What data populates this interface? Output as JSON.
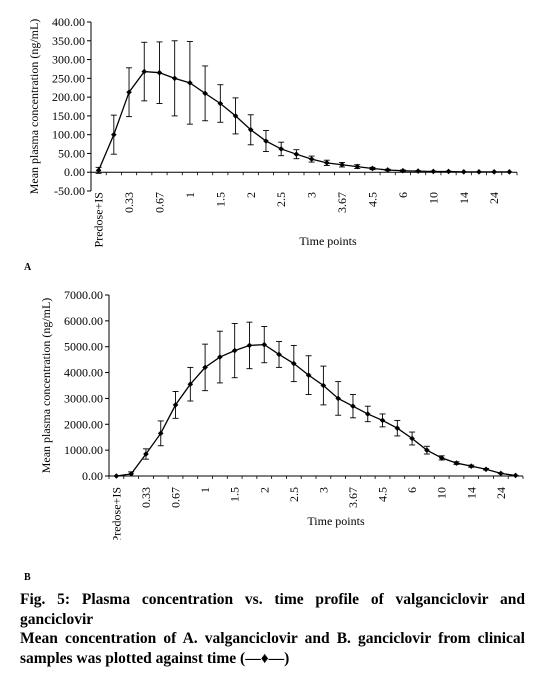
{
  "chart_data": [
    {
      "type": "line",
      "panel": "A",
      "xlabel": "Time points",
      "ylabel": "Mean plasma concentration (ng/mL)",
      "ylim": [
        -50,
        400
      ],
      "yticks": [
        "-50.00",
        "0.00",
        "50.00",
        "100.00",
        "150.00",
        "200.00",
        "250.00",
        "300.00",
        "350.00",
        "400.00"
      ],
      "yticks_values": [
        -50,
        0,
        50,
        100,
        150,
        200,
        250,
        300,
        350,
        400
      ],
      "x_labels_shown": [
        "Predose+IS",
        "0.33",
        "0.67",
        "1",
        "1.5",
        "2",
        "2.5",
        "3",
        "3.67",
        "4.5",
        "6",
        "10",
        "14",
        "24"
      ],
      "x_label_positions": [
        0,
        2,
        4,
        6,
        8,
        10,
        12,
        14,
        16,
        18,
        20,
        22,
        24,
        26
      ],
      "n_points": 28,
      "series": [
        {
          "values": [
            5,
            100,
            213,
            268,
            265,
            250,
            238,
            210,
            183,
            150,
            113,
            83,
            62,
            48,
            35,
            25,
            20,
            15,
            10,
            6,
            4,
            3,
            2,
            2,
            1,
            1,
            1,
            1
          ],
          "error": [
            8,
            52,
            65,
            78,
            82,
            100,
            110,
            73,
            50,
            48,
            40,
            28,
            18,
            12,
            8,
            7,
            6,
            5,
            3,
            2,
            2,
            1,
            1,
            1,
            0,
            0,
            0,
            0
          ]
        }
      ]
    },
    {
      "type": "line",
      "panel": "B",
      "xlabel": "Time points",
      "ylabel": "Mean plasma concentration (ng/mL)",
      "ylim": [
        0,
        7000
      ],
      "yticks": [
        "0.00",
        "1000.00",
        "2000.00",
        "3000.00",
        "4000.00",
        "5000.00",
        "6000.00",
        "7000.00"
      ],
      "yticks_values": [
        0,
        1000,
        2000,
        3000,
        4000,
        5000,
        6000,
        7000
      ],
      "x_labels_shown": [
        "Predose+IS",
        "0.33",
        "0.67",
        "1",
        "1.5",
        "2",
        "2.5",
        "3",
        "3.67",
        "4.5",
        "6",
        "10",
        "14",
        "24"
      ],
      "x_label_positions": [
        0,
        2,
        4,
        6,
        8,
        10,
        12,
        14,
        16,
        18,
        20,
        22,
        24,
        26
      ],
      "n_points": 28,
      "series": [
        {
          "values": [
            0,
            80,
            850,
            1650,
            2750,
            3550,
            4200,
            4600,
            4850,
            5050,
            5080,
            4700,
            4350,
            3900,
            3500,
            3000,
            2700,
            2400,
            2150,
            1850,
            1450,
            1000,
            700,
            500,
            380,
            260,
            100,
            20
          ],
          "error": [
            0,
            80,
            200,
            480,
            520,
            650,
            900,
            1000,
            1050,
            900,
            700,
            500,
            700,
            750,
            750,
            650,
            450,
            300,
            250,
            300,
            250,
            150,
            80,
            50,
            40,
            30,
            10,
            5
          ]
        }
      ]
    }
  ],
  "labels": {
    "a": "A",
    "b": "B"
  },
  "caption": {
    "line1": "Fig. 5: Plasma concentration vs. time profile of valganciclovir and ganciclovir",
    "line2_prefix": "Mean concentration of A. valganciclovir and B. ganciclovir from clinical samples was plotted against time (",
    "legend_marker": "—♦—",
    "line2_suffix": ")"
  }
}
